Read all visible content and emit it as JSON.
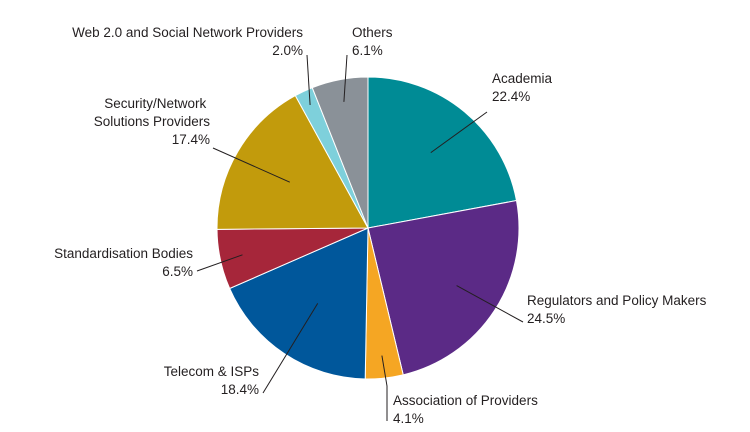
{
  "chart_data": {
    "type": "pie",
    "start_angle": "12 o'clock",
    "direction": "clockwise",
    "slices": [
      {
        "label": "Academia",
        "value": 22.4,
        "value_label": "22.4%",
        "color": "#008b95"
      },
      {
        "label": "Regulators and Policy Makers",
        "value": 24.5,
        "value_label": "24.5%",
        "color": "#5b2a86"
      },
      {
        "label": "Association of Providers",
        "value": 4.1,
        "value_label": "4.1%",
        "color": "#f5a623"
      },
      {
        "label": "Telecom & ISPs",
        "value": 18.4,
        "value_label": "18.4%",
        "color": "#00579b"
      },
      {
        "label": "Standardisation Bodies",
        "value": 6.5,
        "value_label": "6.5%",
        "color": "#a6263a"
      },
      {
        "label": "Security/Network Solutions Providers",
        "value": 17.4,
        "value_label": "17.4%",
        "color": "#c29b0c"
      },
      {
        "label": "Web 2.0 and Social Network Providers",
        "value": 2.0,
        "value_label": "2.0%",
        "color": "#7ed0db"
      },
      {
        "label": "Others",
        "value": 6.1,
        "value_label": "6.1%",
        "color": "#8a9198"
      }
    ]
  }
}
